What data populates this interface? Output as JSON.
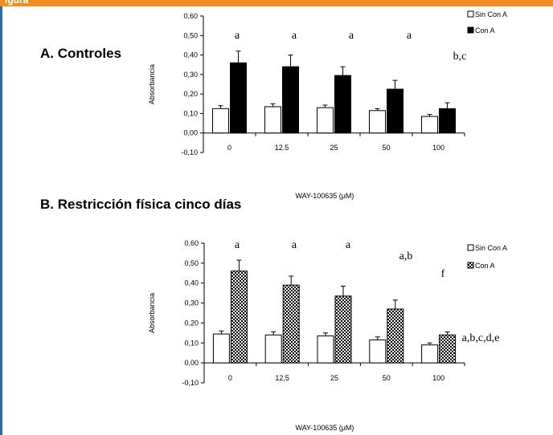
{
  "header": {
    "label": "igura"
  },
  "chart_data": [
    {
      "type": "bar",
      "title": "A. Controles",
      "xlabel": "WAY-100635 (μM)",
      "ylabel": "Absorbancia",
      "categories": [
        "0",
        "12.5",
        "25",
        "50",
        "100"
      ],
      "ylim": [
        -0.1,
        0.6
      ],
      "yticks": [
        "-0,10",
        "0,00",
        "0,10",
        "0,20",
        "0,30",
        "0,40",
        "0,50",
        "0,60"
      ],
      "series": [
        {
          "name": "Sin Con A",
          "values": [
            0.125,
            0.135,
            0.13,
            0.115,
            0.085
          ],
          "errors": [
            0.015,
            0.015,
            0.013,
            0.01,
            0.01
          ],
          "color": "#ffffff"
        },
        {
          "name": "Con A",
          "values": [
            0.36,
            0.34,
            0.295,
            0.225,
            0.125
          ],
          "errors": [
            0.06,
            0.06,
            0.045,
            0.045,
            0.03
          ],
          "color": "#000000"
        }
      ],
      "annotations": [
        "a",
        "a",
        "a",
        "a",
        "b,c"
      ],
      "legend": "top-right",
      "grid": false
    },
    {
      "type": "bar",
      "title": "B. Restricción física cinco días",
      "xlabel": "WAY-100635 (μM)",
      "ylabel": "Absorbancia",
      "categories": [
        "0",
        "12,5",
        "25",
        "50",
        "100"
      ],
      "ylim": [
        -0.1,
        0.6
      ],
      "yticks": [
        "-0,10",
        "0,00",
        "0,10",
        "0,20",
        "0,30",
        "0,40",
        "0,50",
        "0,60"
      ],
      "series": [
        {
          "name": "Sin Con A",
          "values": [
            0.145,
            0.14,
            0.135,
            0.115,
            0.09
          ],
          "errors": [
            0.015,
            0.015,
            0.015,
            0.015,
            0.01
          ],
          "color": "#ffffff"
        },
        {
          "name": "Con A",
          "values": [
            0.46,
            0.39,
            0.335,
            0.27,
            0.14
          ],
          "errors": [
            0.055,
            0.045,
            0.05,
            0.045,
            0.015
          ],
          "color": "#000000",
          "pattern": "checkered"
        }
      ],
      "annotations": [
        "a",
        "a",
        "a",
        "a,b",
        "f",
        "a,b,c,d,e"
      ],
      "legend": "top-right",
      "grid": false
    }
  ]
}
